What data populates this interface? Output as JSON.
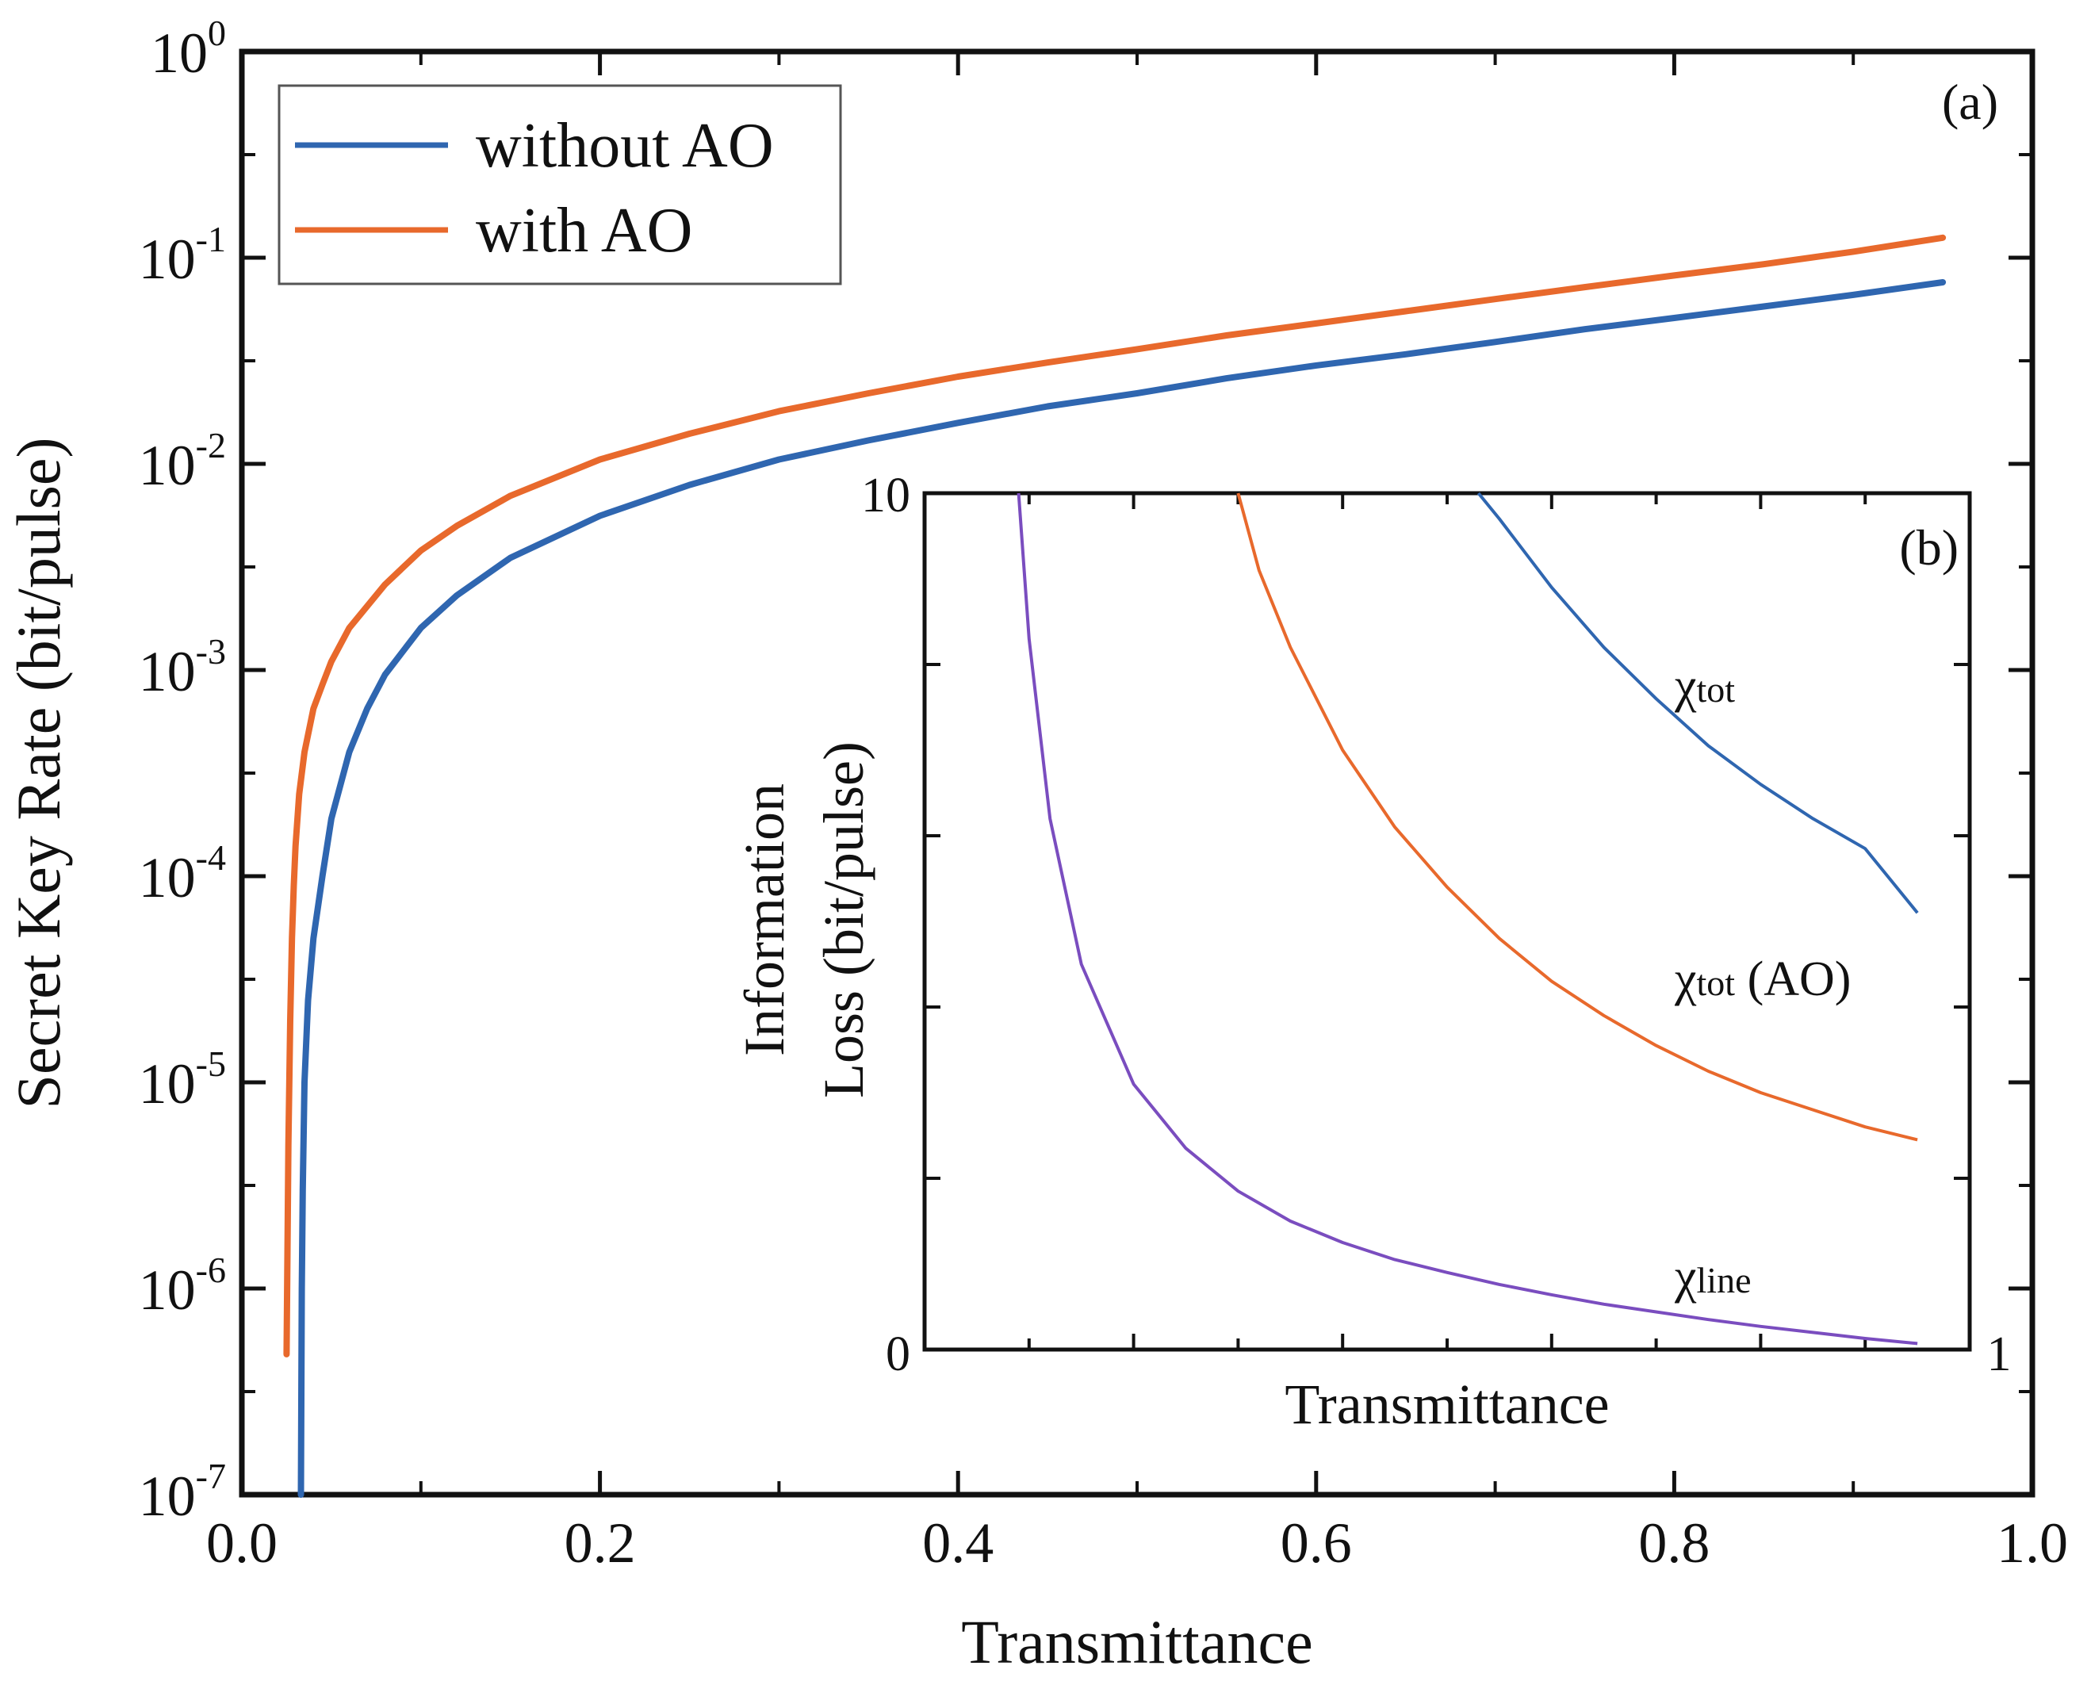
{
  "chart_data": [
    {
      "panel": "(a)",
      "type": "line",
      "xlabel": "Transmittance",
      "ylabel": "Secret Key Rate (bit/pulse)",
      "xlim": [
        0.0,
        1.0
      ],
      "ylim": [
        1e-07,
        1
      ],
      "yscale": "log",
      "x_tick_labels": [
        "0.0",
        "0.2",
        "0.4",
        "0.6",
        "0.8",
        "1.0"
      ],
      "x_ticks": [
        0.0,
        0.2,
        0.4,
        0.6,
        0.8,
        1.0
      ],
      "y_tick_labels": [
        {
          "base": "10",
          "exp": "0",
          "value": 1
        },
        {
          "base": "10",
          "exp": "-1",
          "value": 0.1
        },
        {
          "base": "10",
          "exp": "-2",
          "value": 0.01
        },
        {
          "base": "10",
          "exp": "-3",
          "value": 0.001
        },
        {
          "base": "10",
          "exp": "-4",
          "value": 0.0001
        },
        {
          "base": "10",
          "exp": "-5",
          "value": 1e-05
        },
        {
          "base": "10",
          "exp": "-6",
          "value": 1e-06
        },
        {
          "base": "10",
          "exp": "-7",
          "value": 1e-07
        }
      ],
      "legend_position": "top-left",
      "series": [
        {
          "name": "without AO",
          "color": "#2f66b0",
          "x": [
            0.033,
            0.0335,
            0.034,
            0.035,
            0.037,
            0.04,
            0.045,
            0.05,
            0.06,
            0.07,
            0.08,
            0.1,
            0.12,
            0.15,
            0.2,
            0.25,
            0.3,
            0.35,
            0.4,
            0.45,
            0.5,
            0.55,
            0.6,
            0.65,
            0.7,
            0.75,
            0.8,
            0.85,
            0.9,
            0.95
          ],
          "y": [
            1e-07,
            1e-06,
            3e-06,
            1e-05,
            2.5e-05,
            5e-05,
            0.0001,
            0.00019,
            0.0004,
            0.00065,
            0.00095,
            0.0016,
            0.0023,
            0.0035,
            0.0056,
            0.0079,
            0.0105,
            0.013,
            0.0158,
            0.019,
            0.022,
            0.026,
            0.03,
            0.034,
            0.039,
            0.045,
            0.051,
            0.058,
            0.066,
            0.076
          ]
        },
        {
          "name": "with AO",
          "color": "#e8692c",
          "x": [
            0.025,
            0.026,
            0.027,
            0.028,
            0.029,
            0.03,
            0.032,
            0.035,
            0.04,
            0.045,
            0.05,
            0.06,
            0.08,
            0.1,
            0.12,
            0.15,
            0.2,
            0.25,
            0.3,
            0.35,
            0.4,
            0.45,
            0.5,
            0.55,
            0.6,
            0.65,
            0.7,
            0.75,
            0.8,
            0.85,
            0.9,
            0.95
          ],
          "y": [
            4.8e-07,
            5e-06,
            2e-05,
            5e-05,
            9e-05,
            0.00014,
            0.00025,
            0.0004,
            0.00065,
            0.00085,
            0.0011,
            0.0016,
            0.0026,
            0.0038,
            0.005,
            0.007,
            0.0105,
            0.014,
            0.018,
            0.022,
            0.0265,
            0.031,
            0.036,
            0.042,
            0.048,
            0.055,
            0.063,
            0.072,
            0.082,
            0.093,
            0.107,
            0.125
          ]
        }
      ]
    },
    {
      "panel": "(b)",
      "type": "line",
      "xlabel": "Transmittance",
      "ylabel": [
        "Information",
        "Loss (bit/pulse)"
      ],
      "xlim": [
        0.0,
        1.0
      ],
      "ylim": [
        0,
        10
      ],
      "x_tick_labels": [
        "1"
      ],
      "y_tick_labels": [
        "10",
        "0"
      ],
      "series": [
        {
          "name": "χline",
          "color": "#7a4dbf",
          "x": [
            0.09,
            0.1,
            0.12,
            0.15,
            0.2,
            0.25,
            0.3,
            0.35,
            0.4,
            0.45,
            0.5,
            0.55,
            0.6,
            0.65,
            0.7,
            0.75,
            0.8,
            0.85,
            0.9,
            0.95
          ],
          "y": [
            10.0,
            8.3,
            6.2,
            4.5,
            3.1,
            2.35,
            1.85,
            1.5,
            1.25,
            1.05,
            0.9,
            0.76,
            0.64,
            0.53,
            0.44,
            0.35,
            0.27,
            0.2,
            0.13,
            0.07
          ]
        },
        {
          "name": "χtot (AO)",
          "color": "#e8692c",
          "x": [
            0.3,
            0.32,
            0.35,
            0.4,
            0.45,
            0.5,
            0.55,
            0.6,
            0.65,
            0.7,
            0.75,
            0.8,
            0.85,
            0.9,
            0.95
          ],
          "y": [
            10.0,
            9.1,
            8.2,
            7.0,
            6.1,
            5.4,
            4.8,
            4.3,
            3.9,
            3.55,
            3.25,
            3.0,
            2.8,
            2.6,
            2.45
          ]
        },
        {
          "name": "χtot",
          "color": "#2f66b0",
          "x": [
            0.53,
            0.55,
            0.6,
            0.65,
            0.7,
            0.75,
            0.8,
            0.85,
            0.9,
            0.95
          ],
          "y": [
            10.0,
            9.7,
            8.9,
            8.2,
            7.6,
            7.05,
            6.6,
            6.2,
            5.85,
            5.1
          ]
        }
      ]
    }
  ],
  "annotations": {
    "chi_tot": {
      "main": "χ",
      "sub": "tot"
    },
    "chi_tot_ao": {
      "main": "χ",
      "sub": "tot",
      "suffix": " (AO)"
    },
    "chi_line": {
      "main": "χ",
      "sub": "line"
    }
  }
}
